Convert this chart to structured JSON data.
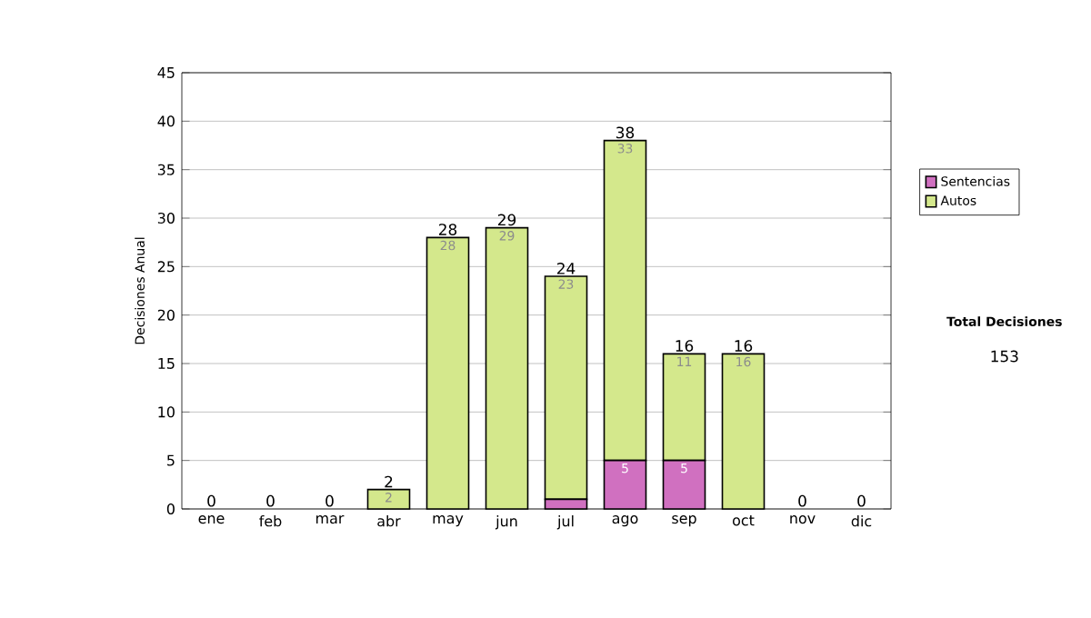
{
  "chart_data": {
    "type": "bar",
    "stacked": true,
    "ylabel": "Decisiones Anual",
    "categories": [
      "ene",
      "feb",
      "mar",
      "abr",
      "may",
      "jun",
      "jul",
      "ago",
      "sep",
      "oct",
      "nov",
      "dic"
    ],
    "series": [
      {
        "name": "Sentencias",
        "color": "#d070c0",
        "values": [
          0,
          0,
          0,
          0,
          0,
          0,
          1,
          5,
          5,
          0,
          0,
          0
        ],
        "value_labels": [
          null,
          null,
          null,
          null,
          null,
          null,
          null,
          "5",
          "5",
          null,
          null,
          null
        ]
      },
      {
        "name": "Autos",
        "color": "#d4e88c",
        "values": [
          0,
          0,
          0,
          2,
          28,
          29,
          23,
          33,
          11,
          16,
          0,
          0
        ],
        "value_labels": [
          null,
          null,
          null,
          "2",
          "28",
          "29",
          "23",
          "33",
          "11",
          "16",
          null,
          null
        ]
      }
    ],
    "totals": [
      "0",
      "0",
      "0",
      "2",
      "28",
      "29",
      "24",
      "38",
      "16",
      "16",
      "0",
      "0"
    ],
    "ylim": [
      0,
      45
    ],
    "yticks": [
      0,
      5,
      10,
      15,
      20,
      25,
      30,
      35,
      40,
      45
    ],
    "grid": "y",
    "legend": "right",
    "annotations": [
      "Total Decisiones",
      "153"
    ]
  }
}
